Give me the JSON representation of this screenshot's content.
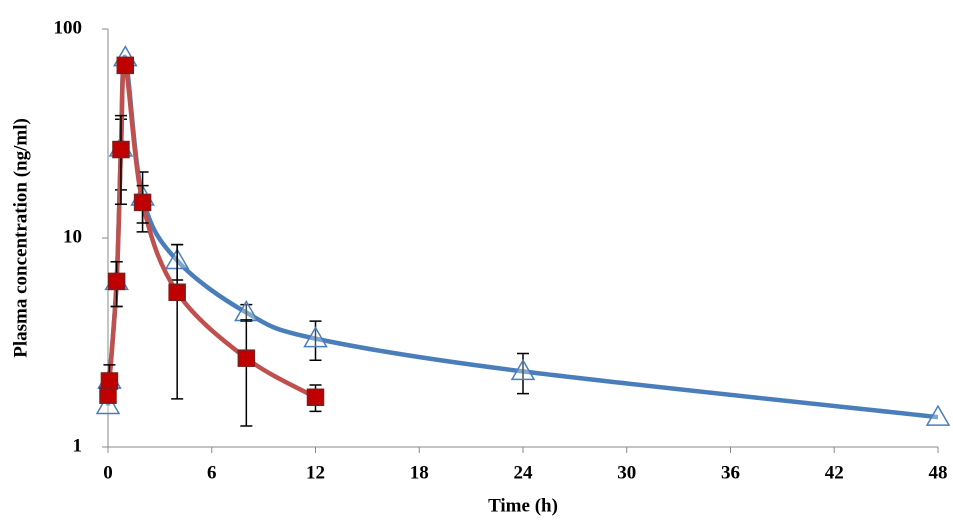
{
  "chart_data": {
    "type": "line",
    "x_label": "Time (h)",
    "y_label": "Plasma concentration (ng/ml)",
    "xlim": [
      0,
      48
    ],
    "xticks": [
      0,
      6,
      12,
      18,
      24,
      30,
      36,
      42,
      48
    ],
    "ylim": [
      1,
      100
    ],
    "yticks": [
      1,
      10,
      100
    ],
    "log_y": true,
    "series": [
      {
        "color": "#4a7ebb",
        "marker": "triangle",
        "x": [
          0,
          0.083,
          0.5,
          0.75,
          1,
          2,
          4,
          8,
          12,
          24,
          48
        ],
        "values": [
          1.58,
          2.09,
          6.2,
          27,
          73,
          15.7,
          7.8,
          4.4,
          3.3,
          2.3,
          1.39
        ],
        "errors": [
          null,
          null,
          1.5,
          10,
          null,
          5,
          1.5,
          0.4,
          0.7,
          0.5,
          null
        ]
      },
      {
        "color": "#c0504d",
        "marker": "square",
        "x": [
          0,
          0.083,
          0.5,
          0.75,
          1,
          2,
          4,
          8,
          12
        ],
        "values": [
          1.77,
          2.07,
          6.2,
          26.5,
          67,
          14.8,
          5.5,
          2.66,
          1.73
        ],
        "errors": [
          null,
          0.4,
          1.5,
          12,
          null,
          3,
          3.8,
          1.4,
          0.25
        ]
      }
    ]
  }
}
